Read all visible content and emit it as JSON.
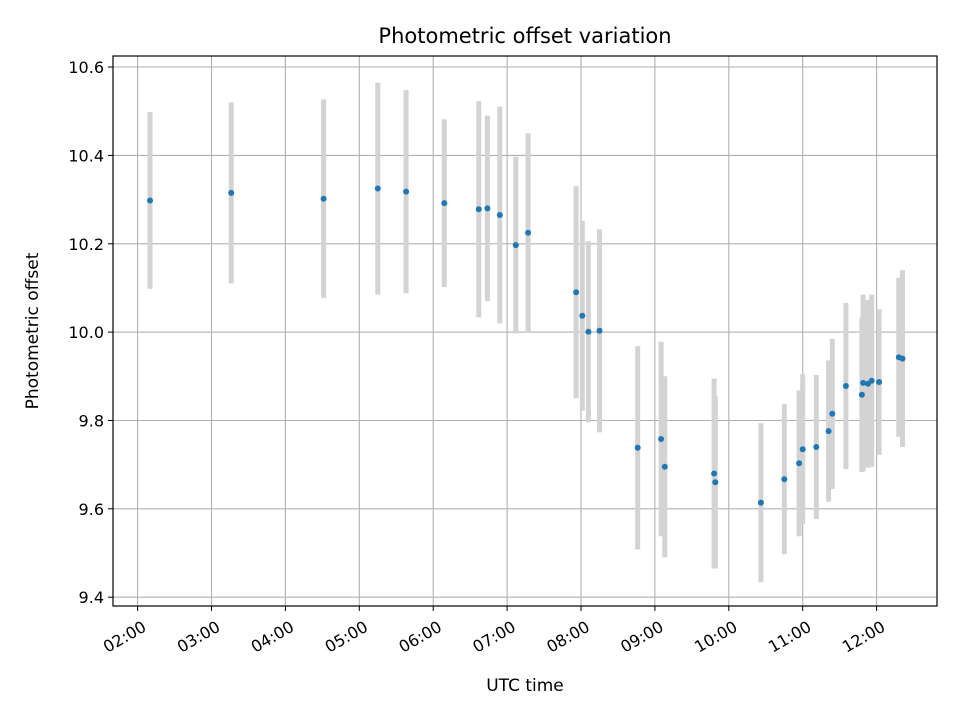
{
  "chart_data": {
    "type": "scatter",
    "title": "Photometric offset variation",
    "xlabel": "UTC time",
    "ylabel": "Photometric offset",
    "x_ticks": [
      "02:00",
      "03:00",
      "04:00",
      "05:00",
      "06:00",
      "07:00",
      "08:00",
      "09:00",
      "10:00",
      "11:00",
      "12:00"
    ],
    "y_ticks": [
      "9.4",
      "9.6",
      "9.8",
      "10.0",
      "10.2",
      "10.4",
      "10.6"
    ],
    "xlim": [
      "01:40",
      "12:49"
    ],
    "ylim": [
      9.38,
      10.625
    ],
    "grid": true,
    "colors": {
      "marker": "#1f77b4",
      "errorbar": "#d3d3d3",
      "grid": "#b0b0b0"
    },
    "series": [
      {
        "x": [
          "02:10",
          "03:16",
          "04:31",
          "05:15",
          "05:38",
          "06:09",
          "06:37",
          "06:44",
          "06:54",
          "07:07",
          "07:17",
          "07:56",
          "08:01",
          "08:06",
          "08:15",
          "08:46",
          "09:05",
          "09:08",
          "09:48",
          "09:49",
          "10:26",
          "10:45",
          "10:57",
          "11:00",
          "11:11",
          "11:21",
          "11:24",
          "11:35",
          "11:48",
          "11:49",
          "11:53",
          "11:56",
          "12:02",
          "12:18",
          "12:21"
        ],
        "y": [
          10.298,
          10.315,
          10.302,
          10.325,
          10.318,
          10.292,
          10.278,
          10.28,
          10.265,
          10.197,
          10.225,
          10.09,
          10.037,
          10.001,
          10.003,
          9.738,
          9.758,
          9.695,
          9.68,
          9.66,
          9.614,
          9.667,
          9.703,
          9.735,
          9.74,
          9.776,
          9.815,
          9.878,
          9.858,
          9.885,
          9.883,
          9.89,
          9.887,
          9.943,
          9.94
        ],
        "err": [
          0.2,
          0.205,
          0.225,
          0.24,
          0.23,
          0.19,
          0.245,
          0.21,
          0.245,
          0.2,
          0.225,
          0.24,
          0.215,
          0.205,
          0.23,
          0.23,
          0.22,
          0.205,
          0.215,
          0.195,
          0.18,
          0.17,
          0.165,
          0.17,
          0.163,
          0.16,
          0.17,
          0.188,
          0.175,
          0.2,
          0.19,
          0.195,
          0.165,
          0.18,
          0.2
        ]
      }
    ]
  }
}
